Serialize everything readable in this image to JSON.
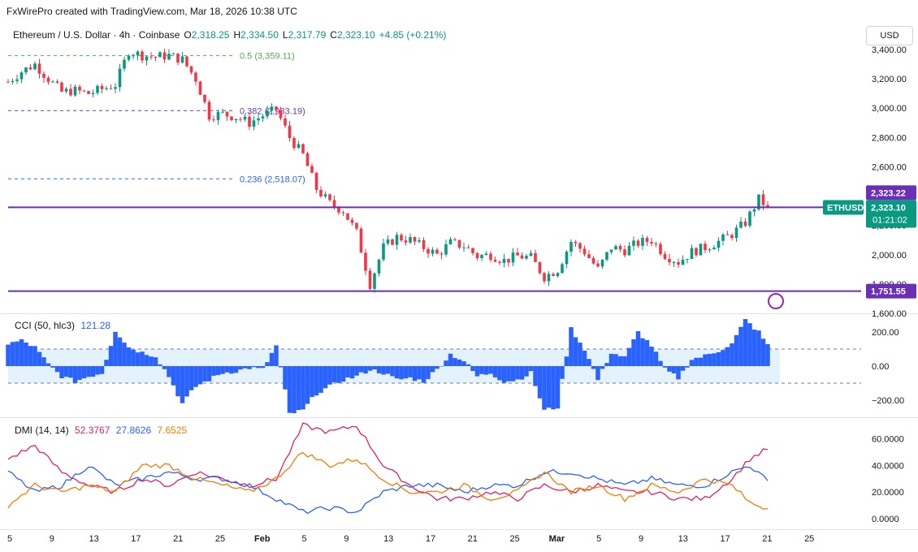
{
  "header": {
    "attribution": "FxWirePro created with TradingView.com, Mar 18, 2026 10:38 UTC"
  },
  "legend": {
    "symbol": "Ethereum / U.S. Dollar · 4h · Coinbase",
    "open_label": "O",
    "open": "2,318.25",
    "high_label": "H",
    "high": "2,334.50",
    "low_label": "L",
    "low": "2,317.79",
    "close_label": "C",
    "close": "2,323.10",
    "change": "+4.85 (+0.21%)"
  },
  "currency_button": "USD",
  "colors": {
    "up": "#089981",
    "down": "#f23645",
    "level_line": "#6a2fb5",
    "cci_fill": "#2962ff",
    "dmi_plus": "#e91e63",
    "dmi_adx": "#2962ff",
    "dmi_minus": "#f57c00"
  },
  "chart_data": [
    {
      "type": "candlestick",
      "ylim": [
        1600,
        3450
      ],
      "yticks": [
        "3,400.00",
        "3,200.00",
        "3,000.00",
        "2,800.00",
        "2,600.00",
        "2,400.00",
        "2,200.00",
        "2,000.00",
        "1,800.00",
        "1,600.00"
      ],
      "ytick_values": [
        3400,
        3200,
        3000,
        2800,
        2600,
        2400,
        2200,
        2000,
        1800,
        1600
      ],
      "x_ticks": [
        "5",
        "9",
        "13",
        "17",
        "21",
        "25",
        "Feb",
        "5",
        "9",
        "13",
        "17",
        "21",
        "25",
        "Mar",
        "5",
        "9",
        "13",
        "17",
        "21",
        "25"
      ],
      "fib_levels": [
        {
          "label": "0.5 (3,359.11)",
          "value": 3359.11,
          "color": "#4caf50"
        },
        {
          "label": "0.382 (2,983.19)",
          "value": 2983.19,
          "color": "#673ab7"
        },
        {
          "label": "0.236 (2,518.07)",
          "value": 2518.07,
          "color": "#2962ff"
        }
      ],
      "horizontal_levels": [
        {
          "value": 2323.22,
          "label": "2,323.22"
        },
        {
          "value": 1751.55,
          "label": "1,751.55"
        }
      ],
      "price_tag": {
        "symbol": "ETHUSD",
        "price": "2,323.10",
        "countdown": "01:21:02"
      },
      "close_path": [
        [
          0,
          3180
        ],
        [
          3,
          3250
        ],
        [
          6,
          3300
        ],
        [
          9,
          3200
        ],
        [
          12,
          3110
        ],
        [
          15,
          3120
        ],
        [
          18,
          3100
        ],
        [
          21,
          3130
        ],
        [
          24,
          3160
        ],
        [
          27,
          3390
        ],
        [
          30,
          3360
        ],
        [
          33,
          3350
        ],
        [
          36,
          3360
        ],
        [
          39,
          3330
        ],
        [
          42,
          3200
        ],
        [
          45,
          2950
        ],
        [
          48,
          2960
        ],
        [
          51,
          2940
        ],
        [
          54,
          2900
        ],
        [
          57,
          2950
        ],
        [
          60,
          2990
        ],
        [
          63,
          2800
        ],
        [
          66,
          2680
        ],
        [
          69,
          2450
        ],
        [
          72,
          2350
        ],
        [
          75,
          2300
        ],
        [
          78,
          2150
        ],
        [
          81,
          1800
        ],
        [
          84,
          2050
        ],
        [
          87,
          2120
        ],
        [
          90,
          2100
        ],
        [
          93,
          2050
        ],
        [
          96,
          2000
        ],
        [
          99,
          2080
        ],
        [
          102,
          2060
        ],
        [
          105,
          1990
        ],
        [
          108,
          2000
        ],
        [
          111,
          1960
        ],
        [
          114,
          1990
        ],
        [
          117,
          1980
        ],
        [
          120,
          1850
        ],
        [
          123,
          1900
        ],
        [
          126,
          2090
        ],
        [
          129,
          2020
        ],
        [
          132,
          1900
        ],
        [
          135,
          2050
        ],
        [
          138,
          2030
        ],
        [
          141,
          2080
        ],
        [
          144,
          2100
        ],
        [
          147,
          2000
        ],
        [
          150,
          1950
        ],
        [
          153,
          2020
        ],
        [
          156,
          2050
        ],
        [
          159,
          2090
        ],
        [
          162,
          2140
        ],
        [
          165,
          2220
        ],
        [
          168,
          2380
        ],
        [
          170,
          2323.1
        ]
      ]
    },
    {
      "type": "area",
      "title": "CCI (50, hlc3)",
      "current": "121.28",
      "ylim": [
        -300,
        300
      ],
      "yticks": [
        "200.00",
        "0.00",
        "−200.00"
      ],
      "ytick_values": [
        200,
        0,
        -200
      ],
      "band": [
        -100,
        100
      ],
      "values": [
        [
          0,
          130
        ],
        [
          3,
          150
        ],
        [
          6,
          110
        ],
        [
          9,
          10
        ],
        [
          12,
          -60
        ],
        [
          15,
          -90
        ],
        [
          18,
          -60
        ],
        [
          21,
          -40
        ],
        [
          24,
          210
        ],
        [
          27,
          110
        ],
        [
          30,
          80
        ],
        [
          33,
          60
        ],
        [
          36,
          -60
        ],
        [
          39,
          -220
        ],
        [
          42,
          -120
        ],
        [
          45,
          -80
        ],
        [
          48,
          -40
        ],
        [
          51,
          -30
        ],
        [
          54,
          -10
        ],
        [
          57,
          -20
        ],
        [
          60,
          120
        ],
        [
          63,
          -280
        ],
        [
          66,
          -260
        ],
        [
          69,
          -160
        ],
        [
          72,
          -120
        ],
        [
          75,
          -80
        ],
        [
          78,
          -60
        ],
        [
          81,
          -20
        ],
        [
          84,
          -40
        ],
        [
          87,
          -80
        ],
        [
          90,
          -70
        ],
        [
          93,
          -90
        ],
        [
          96,
          -20
        ],
        [
          99,
          70
        ],
        [
          102,
          30
        ],
        [
          105,
          -60
        ],
        [
          108,
          -40
        ],
        [
          111,
          -90
        ],
        [
          114,
          -80
        ],
        [
          117,
          -40
        ],
        [
          120,
          -260
        ],
        [
          123,
          -240
        ],
        [
          126,
          220
        ],
        [
          129,
          100
        ],
        [
          132,
          -80
        ],
        [
          135,
          80
        ],
        [
          138,
          50
        ],
        [
          141,
          200
        ],
        [
          144,
          120
        ],
        [
          147,
          -20
        ],
        [
          150,
          -70
        ],
        [
          153,
          40
        ],
        [
          156,
          60
        ],
        [
          159,
          90
        ],
        [
          162,
          130
        ],
        [
          165,
          270
        ],
        [
          168,
          200
        ],
        [
          170,
          121.28
        ]
      ]
    },
    {
      "type": "line",
      "title": "DMI (14, 14)",
      "ylim": [
        -8,
        75
      ],
      "yticks": [
        "60.0000",
        "40.0000",
        "20.0000",
        "0.0000"
      ],
      "ytick_values": [
        60,
        40,
        20,
        0
      ],
      "series": [
        {
          "name": "52.3767",
          "color": "#e91e63",
          "values": [
            [
              0,
              45
            ],
            [
              6,
              55
            ],
            [
              12,
              35
            ],
            [
              18,
              25
            ],
            [
              24,
              20
            ],
            [
              30,
              30
            ],
            [
              36,
              25
            ],
            [
              42,
              35
            ],
            [
              48,
              30
            ],
            [
              54,
              25
            ],
            [
              60,
              30
            ],
            [
              66,
              70
            ],
            [
              72,
              65
            ],
            [
              78,
              70
            ],
            [
              84,
              40
            ],
            [
              90,
              25
            ],
            [
              96,
              15
            ],
            [
              102,
              15
            ],
            [
              108,
              20
            ],
            [
              114,
              15
            ],
            [
              120,
              25
            ],
            [
              126,
              20
            ],
            [
              132,
              25
            ],
            [
              138,
              20
            ],
            [
              144,
              20
            ],
            [
              150,
              15
            ],
            [
              156,
              15
            ],
            [
              162,
              30
            ],
            [
              166,
              45
            ],
            [
              170,
              52.3767
            ]
          ]
        },
        {
          "name": "27.8626",
          "color": "#2962ff",
          "values": [
            [
              0,
              35
            ],
            [
              6,
              20
            ],
            [
              12,
              25
            ],
            [
              18,
              40
            ],
            [
              24,
              25
            ],
            [
              30,
              30
            ],
            [
              36,
              35
            ],
            [
              42,
              30
            ],
            [
              48,
              30
            ],
            [
              54,
              25
            ],
            [
              60,
              15
            ],
            [
              66,
              5
            ],
            [
              72,
              8
            ],
            [
              78,
              5
            ],
            [
              84,
              20
            ],
            [
              90,
              25
            ],
            [
              96,
              25
            ],
            [
              102,
              20
            ],
            [
              108,
              25
            ],
            [
              114,
              25
            ],
            [
              120,
              35
            ],
            [
              126,
              35
            ],
            [
              132,
              30
            ],
            [
              138,
              25
            ],
            [
              144,
              30
            ],
            [
              150,
              25
            ],
            [
              156,
              25
            ],
            [
              162,
              35
            ],
            [
              166,
              40
            ],
            [
              170,
              27.8626
            ]
          ]
        },
        {
          "name": "7.6525",
          "color": "#f57c00",
          "values": [
            [
              0,
              10
            ],
            [
              6,
              25
            ],
            [
              12,
              20
            ],
            [
              18,
              25
            ],
            [
              24,
              20
            ],
            [
              30,
              40
            ],
            [
              36,
              40
            ],
            [
              42,
              30
            ],
            [
              48,
              25
            ],
            [
              54,
              20
            ],
            [
              60,
              30
            ],
            [
              66,
              50
            ],
            [
              72,
              40
            ],
            [
              78,
              45
            ],
            [
              84,
              30
            ],
            [
              90,
              20
            ],
            [
              96,
              20
            ],
            [
              102,
              25
            ],
            [
              108,
              15
            ],
            [
              114,
              20
            ],
            [
              120,
              35
            ],
            [
              126,
              20
            ],
            [
              132,
              25
            ],
            [
              138,
              15
            ],
            [
              144,
              25
            ],
            [
              150,
              20
            ],
            [
              156,
              30
            ],
            [
              162,
              25
            ],
            [
              166,
              12
            ],
            [
              170,
              7.6525
            ]
          ]
        }
      ]
    }
  ]
}
